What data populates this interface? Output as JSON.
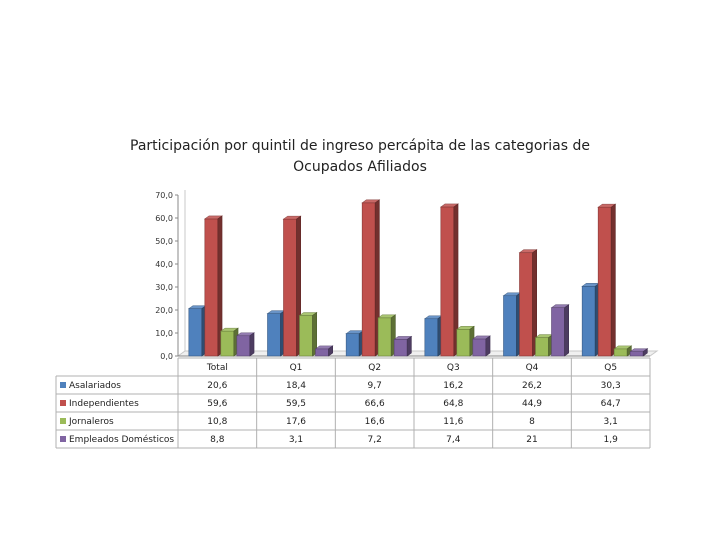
{
  "chart_data": {
    "type": "bar",
    "title_line1": "Participación por quintil de ingreso percápita de las categorias de",
    "title_line2": "Ocupados Afiliados",
    "categories": [
      "Total",
      "Q1",
      "Q2",
      "Q3",
      "Q4",
      "Q5"
    ],
    "ylim": [
      0,
      70
    ],
    "yticks": [
      "0,0",
      "10,0",
      "20,0",
      "30,0",
      "40,0",
      "50,0",
      "60,0",
      "70,0"
    ],
    "grid": false,
    "legend": "data-table",
    "series": [
      {
        "name": "Asalariados",
        "color": "#4f81bd",
        "values": [
          20.6,
          18.4,
          9.7,
          16.2,
          26.2,
          30.3
        ],
        "labels": [
          "20,6",
          "18,4",
          "9,7",
          "16,2",
          "26,2",
          "30,3"
        ]
      },
      {
        "name": "Independientes",
        "color": "#c0504d",
        "values": [
          59.6,
          59.5,
          66.6,
          64.8,
          44.9,
          64.7
        ],
        "labels": [
          "59,6",
          "59,5",
          "66,6",
          "64,8",
          "44,9",
          "64,7"
        ]
      },
      {
        "name": "Jornaleros",
        "color": "#9bbb59",
        "values": [
          10.8,
          17.6,
          16.6,
          11.6,
          8,
          3.1
        ],
        "labels": [
          "10,8",
          "17,6",
          "16,6",
          "11,6",
          "8",
          "3,1"
        ]
      },
      {
        "name": "Empleados Domésticos",
        "color": "#8064a2",
        "values": [
          8.8,
          3.1,
          7.2,
          7.4,
          21,
          1.9
        ],
        "labels": [
          "8,8",
          "3,1",
          "7,2",
          "7,4",
          "21",
          "1,9"
        ]
      }
    ]
  }
}
